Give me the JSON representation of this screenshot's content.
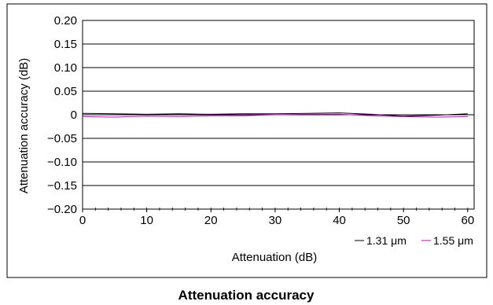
{
  "chart_data": {
    "type": "line",
    "title": "Attenuation accuracy",
    "xlabel": "Attenuation (dB)",
    "ylabel": "Attenuation accuracy (dB)",
    "xlim": [
      0,
      61
    ],
    "ylim": [
      -0.2,
      0.2
    ],
    "x_ticks": [
      0,
      10,
      20,
      30,
      40,
      50,
      60
    ],
    "y_ticks": [
      {
        "value": 0.2,
        "label": "0.20"
      },
      {
        "value": 0.15,
        "label": "0.15"
      },
      {
        "value": 0.1,
        "label": "0.10"
      },
      {
        "value": 0.05,
        "label": "0.05"
      },
      {
        "value": 0,
        "label": "0"
      },
      {
        "value": -0.05,
        "label": "−0.05"
      },
      {
        "value": -0.1,
        "label": "−0.10"
      },
      {
        "value": -0.15,
        "label": "−0.15"
      },
      {
        "value": -0.2,
        "label": "−0.20"
      }
    ],
    "grid": "horizontal",
    "legend_position": "bottom-right",
    "x": [
      0,
      5,
      10,
      15,
      20,
      25,
      30,
      35,
      40,
      45,
      50,
      55,
      60
    ],
    "series": [
      {
        "name": "1.31 μm",
        "color": "#000000",
        "values": [
          0.003,
          0.002,
          0.001,
          0.002,
          0.001,
          0.002,
          0.002,
          0.003,
          0.004,
          0.001,
          -0.003,
          -0.001,
          0.002
        ]
      },
      {
        "name": "1.55 μm",
        "color": "#cc00cc",
        "values": [
          -0.004,
          -0.005,
          -0.003,
          -0.004,
          -0.002,
          -0.002,
          0.0,
          0.001,
          0.001,
          -0.002,
          -0.004,
          -0.005,
          -0.004
        ]
      }
    ]
  }
}
